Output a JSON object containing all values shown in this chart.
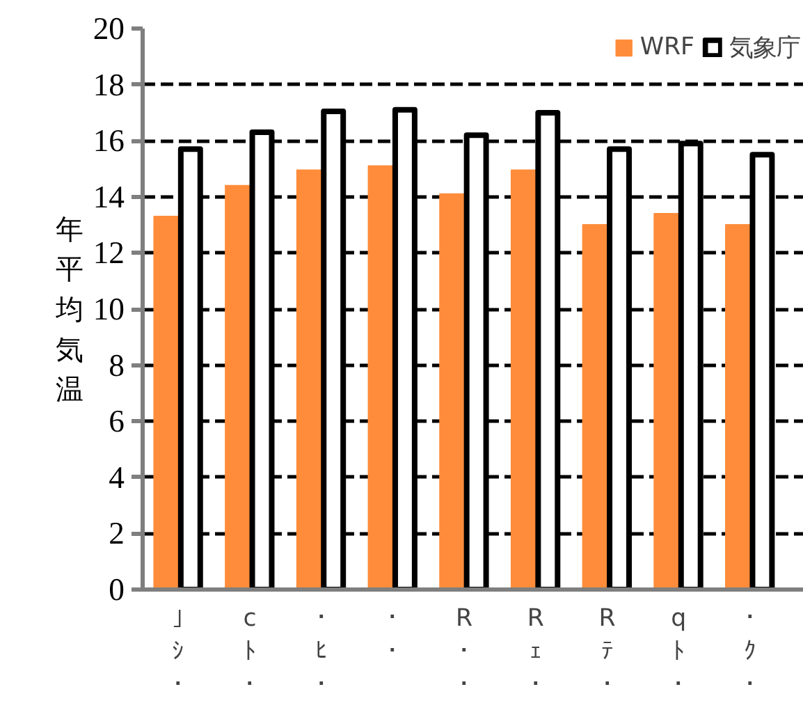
{
  "chart_data": {
    "type": "bar",
    "categories": [
      "｣ｼ･",
      "cﾄ･",
      "･ﾋ･",
      "･･",
      "R･･",
      "Rｪ･",
      "Rﾃ･",
      "qﾄ･",
      "･ｸ･"
    ],
    "series": [
      {
        "name": "WRF",
        "color": "#ff8c3a",
        "values": [
          13.3,
          14.4,
          14.95,
          15.1,
          14.1,
          14.95,
          13.0,
          13.4,
          13.0
        ]
      },
      {
        "name": "気象庁",
        "color": "#ffffff",
        "values": [
          15.7,
          16.3,
          17.05,
          17.1,
          16.2,
          17.0,
          15.7,
          15.9,
          15.5
        ]
      }
    ],
    "ylabel": "年平均気温",
    "ylim": [
      0,
      20
    ],
    "yticks": [
      0,
      2,
      4,
      6,
      8,
      10,
      12,
      14,
      16,
      18,
      20
    ],
    "grid": "y",
    "legend": "top right"
  }
}
